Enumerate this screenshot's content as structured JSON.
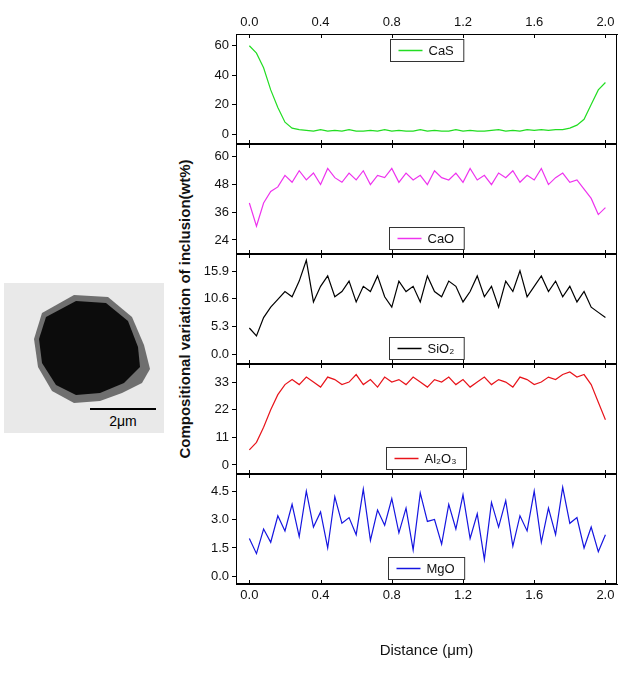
{
  "ylabel": "Compositional variation of inclusion(wt%)",
  "image": {
    "scale_bar": "2μm"
  },
  "chart_data": [
    {
      "type": "line",
      "legend": "upper center",
      "grid": false,
      "x": [
        0,
        0.04,
        0.08,
        0.12,
        0.16,
        0.2,
        0.24,
        0.28,
        0.32,
        0.36,
        0.4,
        0.44,
        0.48,
        0.52,
        0.56,
        0.6,
        0.64,
        0.68,
        0.72,
        0.76,
        0.8,
        0.84,
        0.88,
        0.92,
        0.96,
        1.0,
        1.04,
        1.08,
        1.12,
        1.16,
        1.2,
        1.24,
        1.28,
        1.32,
        1.36,
        1.4,
        1.44,
        1.48,
        1.52,
        1.56,
        1.6,
        1.64,
        1.68,
        1.72,
        1.76,
        1.8,
        1.84,
        1.88,
        1.92,
        1.96,
        2.0
      ],
      "xlim": [
        -0.075,
        2.065
      ],
      "xticks": [
        {
          "value": 0,
          "label": "0.0"
        },
        0.4,
        0.8,
        1.2,
        1.6,
        {
          "value": 2,
          "label": "2.0"
        }
      ],
      "ylim": [
        -6.8,
        68
      ],
      "yticks": [
        0,
        20,
        40,
        60
      ],
      "series": [
        {
          "name": "CaS",
          "color": "#22dd22",
          "values": [
            60,
            55,
            45,
            30,
            18,
            8,
            4,
            3,
            2.5,
            2,
            3,
            2,
            2.5,
            2,
            3,
            2,
            2,
            2.5,
            2,
            3,
            2,
            2.5,
            2,
            2,
            3,
            2,
            2.5,
            2,
            2,
            3,
            2,
            2.5,
            2,
            2,
            2.5,
            3,
            2,
            2.5,
            2,
            3,
            2.5,
            3,
            2.5,
            3,
            3,
            4,
            6,
            10,
            20,
            30,
            35
          ]
        }
      ]
    },
    {
      "type": "line",
      "legend": "lower center",
      "grid": false,
      "tick_labels": "y",
      "x": [
        0,
        0.04,
        0.08,
        0.12,
        0.16,
        0.2,
        0.24,
        0.28,
        0.32,
        0.36,
        0.4,
        0.44,
        0.48,
        0.52,
        0.56,
        0.6,
        0.64,
        0.68,
        0.72,
        0.76,
        0.8,
        0.84,
        0.88,
        0.92,
        0.96,
        1.0,
        1.04,
        1.08,
        1.12,
        1.16,
        1.2,
        1.24,
        1.28,
        1.32,
        1.36,
        1.4,
        1.44,
        1.48,
        1.52,
        1.56,
        1.6,
        1.64,
        1.68,
        1.72,
        1.76,
        1.8,
        1.84,
        1.88,
        1.92,
        1.96,
        2.0
      ],
      "xlim": [
        -0.075,
        2.065
      ],
      "xticks": [
        {
          "value": 0,
          "label": "0.0"
        },
        0.4,
        0.8,
        1.2,
        1.6,
        {
          "value": 2,
          "label": "2.0"
        }
      ],
      "ylim": [
        17.9,
        65.6
      ],
      "yticks": [
        24,
        36,
        48,
        60
      ],
      "series": [
        {
          "name": "CaO",
          "color": "#ee33ee",
          "values": [
            40,
            30,
            40,
            45,
            47,
            52,
            49,
            54,
            50,
            53,
            48,
            55,
            51,
            49,
            53,
            50,
            54,
            48,
            52,
            51,
            55,
            49,
            53,
            50,
            52,
            48,
            54,
            51,
            50,
            53,
            49,
            55,
            50,
            52,
            48,
            53,
            51,
            54,
            49,
            52,
            50,
            55,
            48,
            51,
            53,
            49,
            50,
            46,
            42,
            35,
            38
          ]
        }
      ]
    },
    {
      "type": "line",
      "legend": "lower center",
      "grid": false,
      "tick_labels": "y",
      "x": [
        0,
        0.04,
        0.08,
        0.12,
        0.16,
        0.2,
        0.24,
        0.28,
        0.32,
        0.36,
        0.4,
        0.44,
        0.48,
        0.52,
        0.56,
        0.6,
        0.64,
        0.68,
        0.72,
        0.76,
        0.8,
        0.84,
        0.88,
        0.92,
        0.96,
        1.0,
        1.04,
        1.08,
        1.12,
        1.16,
        1.2,
        1.24,
        1.28,
        1.32,
        1.36,
        1.4,
        1.44,
        1.48,
        1.52,
        1.56,
        1.6,
        1.64,
        1.68,
        1.72,
        1.76,
        1.8,
        1.84,
        1.88,
        1.92,
        1.96,
        2.0
      ],
      "xlim": [
        -0.075,
        2.065
      ],
      "xticks": [
        {
          "value": 0,
          "label": "0.0"
        },
        0.4,
        0.8,
        1.2,
        1.6,
        {
          "value": 2,
          "label": "2.0"
        }
      ],
      "ylim": [
        -1.9,
        19.2
      ],
      "yticks": [
        {
          "value": 0,
          "label": "0.0"
        },
        5.3,
        10.6,
        15.9
      ],
      "series": [
        {
          "name": "SiO₂",
          "color": "#000000",
          "values": [
            5,
            3.5,
            7,
            9,
            10.5,
            12,
            11,
            14,
            18,
            10,
            13,
            15,
            11,
            12,
            14,
            10,
            13,
            12,
            15,
            11,
            9,
            14,
            12,
            13,
            10,
            15,
            12,
            11,
            14,
            13,
            10,
            12,
            15,
            11,
            13,
            9,
            14,
            12,
            16,
            11,
            13,
            15,
            12,
            14,
            11,
            13,
            10,
            12,
            9,
            8,
            7
          ]
        }
      ]
    },
    {
      "type": "line",
      "legend": "lower center",
      "grid": false,
      "tick_labels": "y",
      "x": [
        0,
        0.04,
        0.08,
        0.12,
        0.16,
        0.2,
        0.24,
        0.28,
        0.32,
        0.36,
        0.4,
        0.44,
        0.48,
        0.52,
        0.56,
        0.6,
        0.64,
        0.68,
        0.72,
        0.76,
        0.8,
        0.84,
        0.88,
        0.92,
        0.96,
        1.0,
        1.04,
        1.08,
        1.12,
        1.16,
        1.2,
        1.24,
        1.28,
        1.32,
        1.36,
        1.4,
        1.44,
        1.48,
        1.52,
        1.56,
        1.6,
        1.64,
        1.68,
        1.72,
        1.76,
        1.8,
        1.84,
        1.88,
        1.92,
        1.96,
        2.0
      ],
      "xlim": [
        -0.075,
        2.065
      ],
      "xticks": [
        {
          "value": 0,
          "label": "0.0"
        },
        0.4,
        0.8,
        1.2,
        1.6,
        {
          "value": 2,
          "label": "2.0"
        }
      ],
      "ylim": [
        -3.6,
        40.2
      ],
      "yticks": [
        0,
        11,
        22,
        33
      ],
      "series": [
        {
          "name": "Al₂O₃",
          "color": "#e8141b",
          "values": [
            6,
            9,
            15,
            22,
            28,
            32,
            34,
            32,
            35,
            33,
            31,
            35,
            34,
            32,
            33,
            36,
            32,
            34,
            31,
            35,
            33,
            34,
            32,
            35,
            33,
            31,
            34,
            33,
            35,
            32,
            34,
            31,
            33,
            35,
            32,
            34,
            33,
            31,
            35,
            34,
            32,
            33,
            35,
            34,
            36,
            37,
            35,
            36,
            32,
            25,
            18
          ]
        }
      ]
    },
    {
      "type": "line",
      "legend": "lower center",
      "grid": false,
      "x": [
        0,
        0.04,
        0.08,
        0.12,
        0.16,
        0.2,
        0.24,
        0.28,
        0.32,
        0.36,
        0.4,
        0.44,
        0.48,
        0.52,
        0.56,
        0.6,
        0.64,
        0.68,
        0.72,
        0.76,
        0.8,
        0.84,
        0.88,
        0.92,
        0.96,
        1.0,
        1.04,
        1.08,
        1.12,
        1.16,
        1.2,
        1.24,
        1.28,
        1.32,
        1.36,
        1.4,
        1.44,
        1.48,
        1.52,
        1.56,
        1.6,
        1.64,
        1.68,
        1.72,
        1.76,
        1.8,
        1.84,
        1.88,
        1.92,
        1.96,
        2.0
      ],
      "xlim": [
        -0.075,
        2.065
      ],
      "xticks": [
        {
          "value": 0,
          "label": "0.0"
        },
        0.4,
        0.8,
        1.2,
        1.6,
        {
          "value": 2,
          "label": "2.0"
        }
      ],
      "ylim": [
        -0.4,
        5.4
      ],
      "yticks": [
        {
          "value": 0,
          "label": "0.0"
        },
        1.5,
        {
          "value": 3,
          "label": "3.0"
        },
        4.5
      ],
      "xlabel": "Distance (μm)",
      "series": [
        {
          "name": "MgO",
          "color": "#1515e0",
          "values": [
            2,
            1.2,
            2.5,
            1.8,
            3.2,
            2.4,
            3.8,
            2.1,
            4.5,
            2.6,
            3.4,
            1.5,
            4.2,
            2.8,
            3.1,
            2.2,
            4.6,
            1.9,
            3.5,
            2.7,
            4.1,
            2.3,
            3.6,
            1.4,
            4.4,
            2.9,
            3.0,
            1.7,
            3.8,
            2.5,
            4.3,
            2.0,
            3.3,
            0.9,
            3.9,
            2.6,
            4.0,
            1.6,
            3.2,
            2.4,
            4.5,
            1.8,
            3.6,
            2.2,
            4.7,
            2.8,
            3.1,
            1.5,
            2.6,
            1.3,
            2.2
          ]
        }
      ]
    }
  ]
}
